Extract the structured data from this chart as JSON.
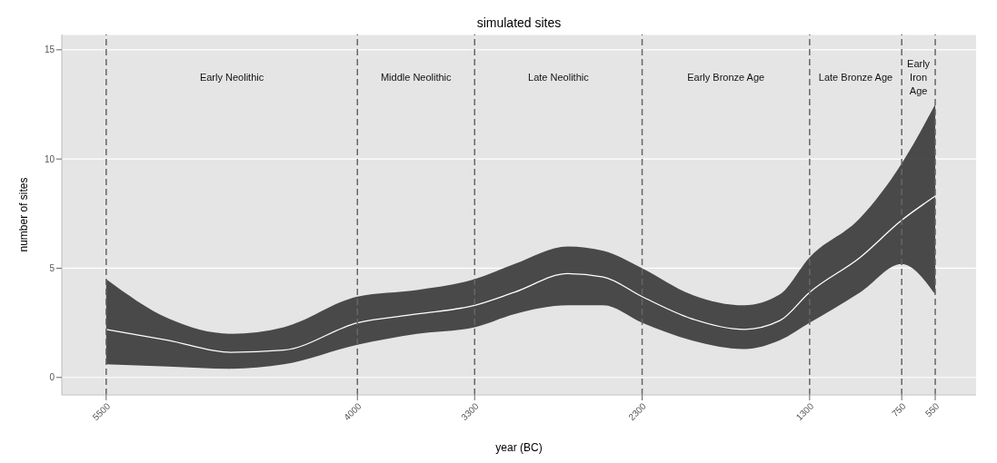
{
  "chart_data": {
    "type": "line",
    "title": "simulated sites",
    "xlabel": "year (BC)",
    "ylabel": "number of sites",
    "x": [
      5500,
      5129,
      4758,
      4440,
      4000,
      3645,
      3300,
      3062,
      2744,
      2532,
      2300,
      2008,
      1690,
      1478,
      1300,
      998,
      750,
      550
    ],
    "series": [
      {
        "color": "#ffffff",
        "values": [
          2.2,
          1.7,
          1.15,
          1.25,
          2.5,
          2.9,
          3.3,
          3.9,
          4.75,
          4.6,
          3.7,
          2.7,
          2.2,
          2.6,
          3.9,
          5.5,
          7.2,
          8.3
        ],
        "lower": [
          0.6,
          0.5,
          0.4,
          0.6,
          1.5,
          2.0,
          2.3,
          2.9,
          3.3,
          3.3,
          2.5,
          1.7,
          1.3,
          1.7,
          2.5,
          3.9,
          5.2,
          3.8
        ],
        "upper": [
          4.5,
          2.7,
          2.0,
          2.3,
          3.7,
          4.0,
          4.5,
          5.2,
          6.0,
          5.8,
          5.0,
          3.8,
          3.3,
          3.8,
          5.5,
          7.3,
          9.8,
          12.5
        ]
      }
    ],
    "xlim": [
      5765,
      306
    ],
    "xticks": [
      5500,
      4000,
      3300,
      2300,
      1300,
      750,
      550
    ],
    "ylim": [
      -0.8,
      15.7
    ],
    "yticks": [
      0,
      5,
      10,
      15
    ],
    "grid": "y",
    "marker": "none",
    "line_style": "solid",
    "ref_lines": [
      {
        "axis": "x",
        "value": 5500,
        "line_style": "dashed",
        "color": "#666666"
      },
      {
        "axis": "x",
        "value": 4000,
        "line_style": "dashed",
        "color": "#666666"
      },
      {
        "axis": "x",
        "value": 3300,
        "line_style": "dashed",
        "color": "#666666"
      },
      {
        "axis": "x",
        "value": 2300,
        "line_style": "dashed",
        "color": "#666666"
      },
      {
        "axis": "x",
        "value": 1300,
        "line_style": "dashed",
        "color": "#666666"
      },
      {
        "axis": "x",
        "value": 750,
        "line_style": "dashed",
        "color": "#666666"
      },
      {
        "axis": "x",
        "value": 550,
        "line_style": "dashed",
        "color": "#666666"
      }
    ],
    "annotations": [
      "Early Neolithic",
      "Middle Neolithic",
      "Late Neolithic",
      "Early Bronze Age",
      "Late Bronze Age",
      "Early Iron Age"
    ]
  }
}
